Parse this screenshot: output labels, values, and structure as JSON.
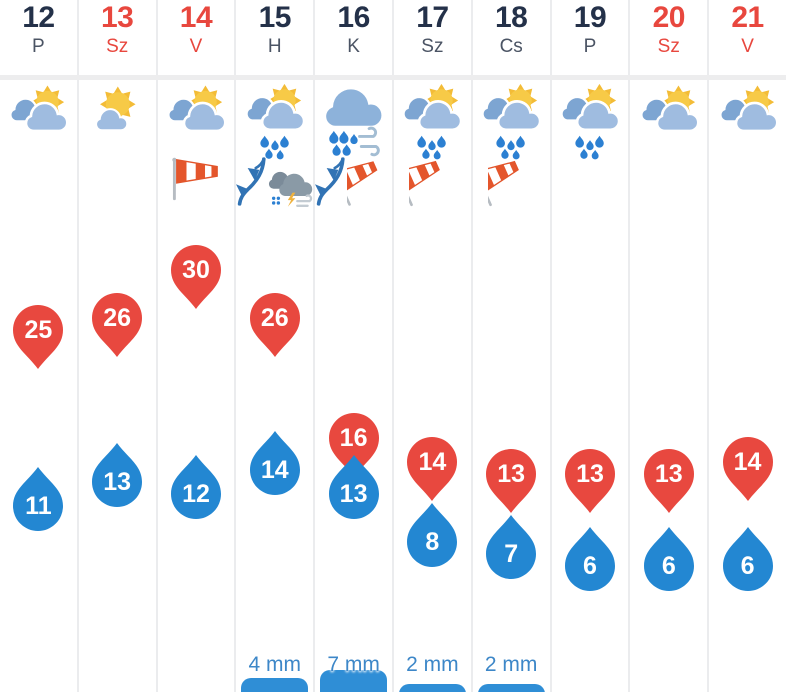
{
  "widget": {
    "name": "10-day weather forecast meteogram"
  },
  "colors": {
    "max_marker": "#e8483f",
    "min_marker": "#2387d2",
    "precip_bar": "#2f8ed6",
    "precip_text": "#3d87c8",
    "date_text": "#243149",
    "weekend_text": "#e8473e",
    "day_abbr_text": "#4b5464",
    "grid_line": "#ebecee",
    "sun": "#f7ca47",
    "cloud": "#9fbce0",
    "windsock": "#e4562c"
  },
  "days": [
    {
      "date": "12",
      "abbr": "P",
      "weekend": false,
      "icon": "sun-behind-clouds-icon",
      "warnings": [],
      "temp_max": 25,
      "temp_min": 11,
      "precip_label": "",
      "precip_mm": 0
    },
    {
      "date": "13",
      "abbr": "Sz",
      "weekend": true,
      "icon": "sun-small-cloud-icon",
      "warnings": [],
      "temp_max": 26,
      "temp_min": 13,
      "precip_label": "",
      "precip_mm": 0
    },
    {
      "date": "14",
      "abbr": "V",
      "weekend": true,
      "icon": "sun-behind-clouds-icon",
      "warnings": [
        "windsock-icon"
      ],
      "temp_max": 30,
      "temp_min": 12,
      "precip_label": "",
      "precip_mm": 0
    },
    {
      "date": "15",
      "abbr": "H",
      "weekend": false,
      "icon": "sun-clouds-rain-icon",
      "warnings": [
        "cold-front-icon",
        "storm-sleet-wind-icon"
      ],
      "temp_max": 26,
      "temp_min": 14,
      "precip_label": "4 mm",
      "precip_mm": 4
    },
    {
      "date": "16",
      "abbr": "K",
      "weekend": false,
      "icon": "cloud-rain-wind-icon",
      "warnings": [
        "cold-front-icon",
        "windsock-up-icon"
      ],
      "temp_max": 16,
      "temp_min": 13,
      "precip_label": "7 mm",
      "precip_mm": 7
    },
    {
      "date": "17",
      "abbr": "Sz",
      "weekend": false,
      "icon": "sun-clouds-rain-icon",
      "warnings": [
        "windsock-up-icon"
      ],
      "temp_max": 14,
      "temp_min": 8,
      "precip_label": "2 mm",
      "precip_mm": 2
    },
    {
      "date": "18",
      "abbr": "Cs",
      "weekend": false,
      "icon": "sun-clouds-rain-icon",
      "warnings": [
        "windsock-up-icon"
      ],
      "temp_max": 13,
      "temp_min": 7,
      "precip_label": "2 mm",
      "precip_mm": 2
    },
    {
      "date": "19",
      "abbr": "P",
      "weekend": false,
      "icon": "sun-clouds-rain-icon",
      "warnings": [],
      "temp_max": 13,
      "temp_min": 6,
      "precip_label": "",
      "precip_mm": 0
    },
    {
      "date": "20",
      "abbr": "Sz",
      "weekend": true,
      "icon": "sun-behind-clouds-icon",
      "warnings": [],
      "temp_max": 13,
      "temp_min": 6,
      "precip_label": "",
      "precip_mm": 0
    },
    {
      "date": "21",
      "abbr": "V",
      "weekend": true,
      "icon": "sun-behind-clouds-icon",
      "warnings": [],
      "temp_max": 14,
      "temp_min": 6,
      "precip_label": "",
      "precip_mm": 0
    }
  ],
  "chart_data": {
    "type": "meteogram",
    "categories": [
      "12 P",
      "13 Sz",
      "14 V",
      "15 H",
      "16 K",
      "17 Sz",
      "18 Cs",
      "19 P",
      "20 Sz",
      "21 V"
    ],
    "series": [
      {
        "name": "max_temp_c",
        "marker": "red map pin",
        "values": [
          25,
          26,
          30,
          26,
          16,
          14,
          13,
          13,
          13,
          14
        ]
      },
      {
        "name": "min_temp_c",
        "marker": "blue droplet",
        "values": [
          11,
          13,
          12,
          14,
          13,
          8,
          7,
          6,
          6,
          6
        ]
      },
      {
        "name": "precipitation_mm",
        "marker": "blue bar at bottom",
        "values": [
          null,
          null,
          null,
          4,
          7,
          2,
          2,
          null,
          null,
          null
        ]
      }
    ],
    "precip_labels": [
      "",
      "",
      "",
      "4 mm",
      "7 mm",
      "2 mm",
      "2 mm",
      "",
      "",
      ""
    ],
    "layout_hints": {
      "orientation": "columns per day",
      "value_encoding": "vertical position encodes temperature (higher = warmer)",
      "legend": "none",
      "grid": "light vertical column separators"
    }
  }
}
